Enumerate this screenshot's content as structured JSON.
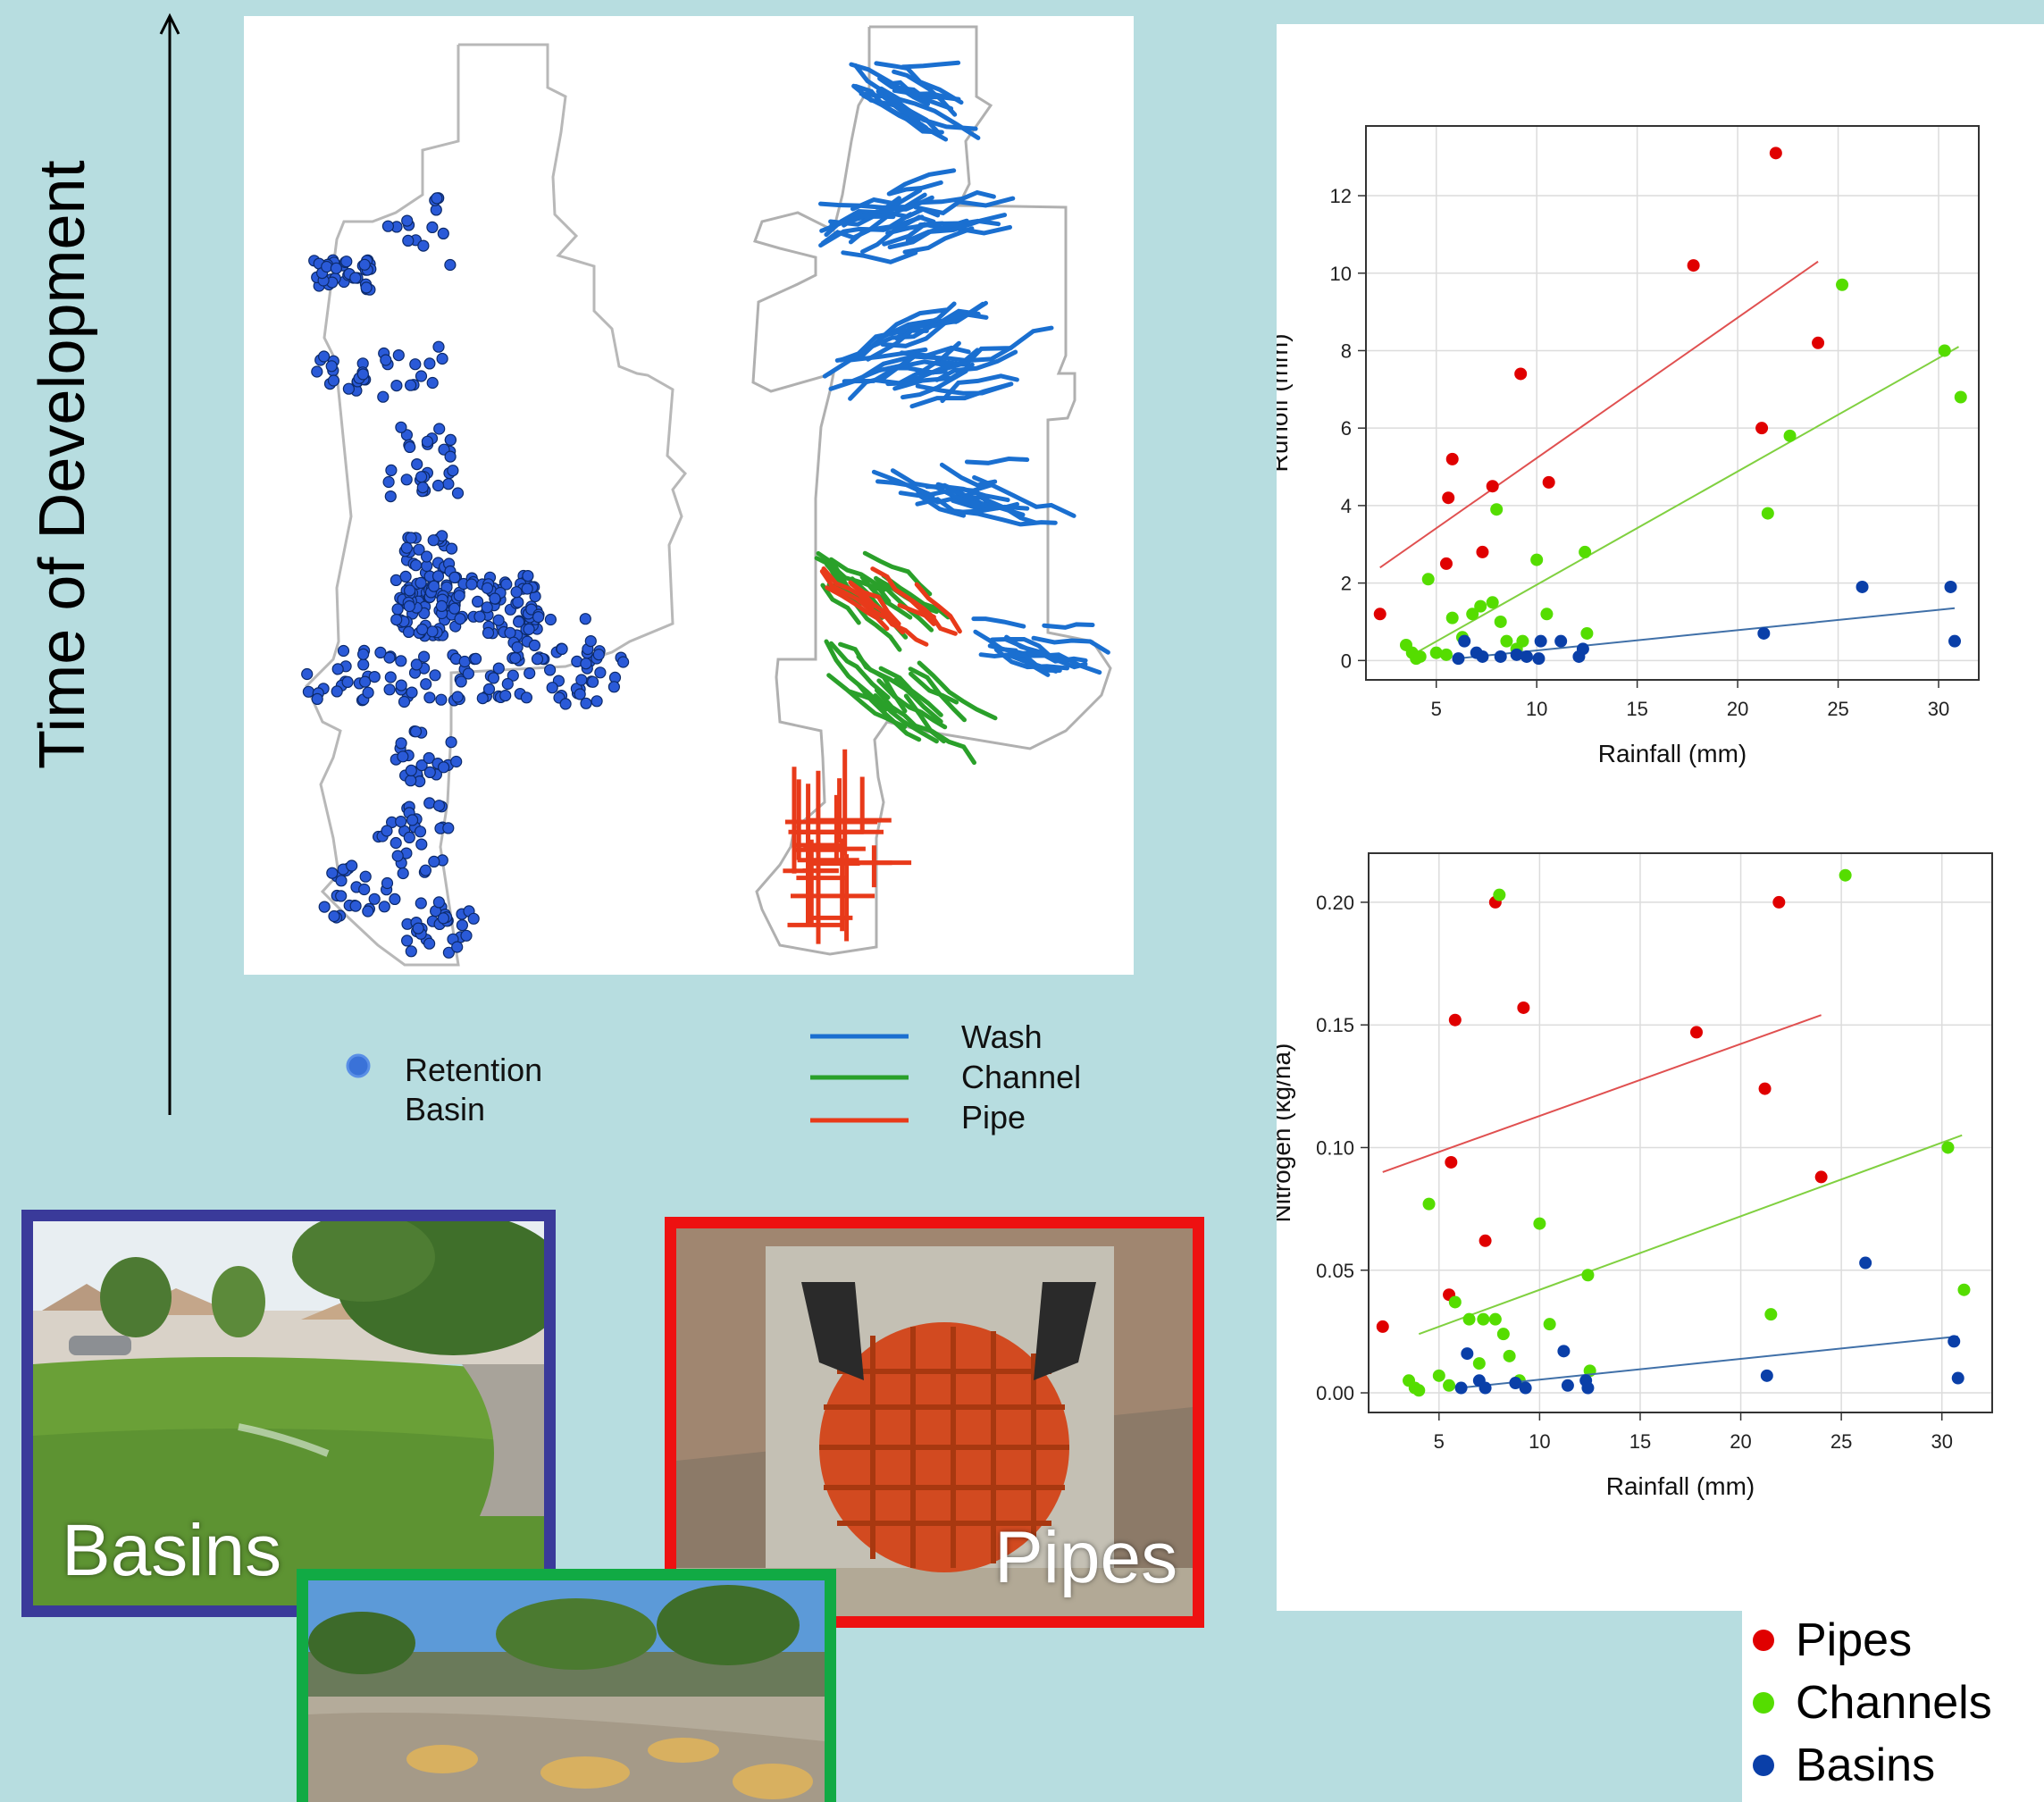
{
  "side_label": "Time of Development",
  "map_legend": {
    "retention_line1": "Retention",
    "retention_line2": "Basin",
    "wash": "Wash",
    "channel": "Channel",
    "pipe": "Pipe"
  },
  "colors": {
    "background": "#b7dde0",
    "basin_dot": "#2a5ad8",
    "wash": "#1a6fd0",
    "channel": "#2aa02a",
    "pipe": "#e83a1a",
    "pipes_series": "#e00000",
    "channels_series": "#55dd00",
    "basins_series": "#0a3fa8",
    "basins_frame": "#3a3a9a",
    "pipes_frame": "#ee1111",
    "channels_frame": "#11aa44"
  },
  "photos": {
    "basins": "Basins",
    "pipes": "Pipes"
  },
  "bottom_legend": {
    "pipes": "Pipes",
    "channels": "Channels",
    "basins": "Basins"
  },
  "chart_data": [
    {
      "type": "scatter",
      "xlabel": "Rainfall (mm)",
      "ylabel": "Runoff (mm)",
      "xlim": [
        1.5,
        32
      ],
      "ylim": [
        -0.5,
        13.8
      ],
      "xticks": [
        5,
        10,
        15,
        20,
        25,
        30
      ],
      "yticks": [
        0,
        2,
        4,
        6,
        8,
        10,
        12
      ],
      "ytick_labels": [
        "0",
        "2",
        "4",
        "6",
        "8",
        "10",
        "12"
      ],
      "grid": true,
      "series": [
        {
          "key": "pipes",
          "points": [
            [
              2.2,
              1.2
            ],
            [
              5.5,
              2.5
            ],
            [
              5.6,
              4.2
            ],
            [
              5.8,
              5.2
            ],
            [
              7.3,
              2.8
            ],
            [
              7.8,
              4.5
            ],
            [
              9.2,
              7.4
            ],
            [
              10.6,
              4.6
            ],
            [
              17.8,
              10.2
            ],
            [
              21.2,
              6.0
            ],
            [
              21.9,
              13.1
            ],
            [
              24.0,
              8.2
            ]
          ],
          "fit": [
            [
              2.2,
              2.4
            ],
            [
              24.0,
              10.3
            ]
          ]
        },
        {
          "key": "channels",
          "points": [
            [
              3.5,
              0.4
            ],
            [
              3.8,
              0.2
            ],
            [
              4.0,
              0.05
            ],
            [
              4.2,
              0.1
            ],
            [
              4.6,
              2.1
            ],
            [
              5.0,
              0.2
            ],
            [
              5.5,
              0.15
            ],
            [
              5.8,
              1.1
            ],
            [
              6.3,
              0.6
            ],
            [
              6.8,
              1.2
            ],
            [
              7.2,
              1.4
            ],
            [
              7.8,
              1.5
            ],
            [
              8.0,
              3.9
            ],
            [
              8.2,
              1.0
            ],
            [
              8.5,
              0.5
            ],
            [
              9.0,
              0.3
            ],
            [
              9.3,
              0.5
            ],
            [
              10.0,
              2.6
            ],
            [
              10.5,
              1.2
            ],
            [
              12.4,
              2.8
            ],
            [
              12.5,
              0.7
            ],
            [
              21.5,
              3.8
            ],
            [
              22.6,
              5.8
            ],
            [
              25.2,
              9.7
            ],
            [
              30.3,
              8.0
            ],
            [
              31.1,
              6.8
            ]
          ],
          "fit": [
            [
              4.0,
              0.2
            ],
            [
              31.0,
              8.1
            ]
          ]
        },
        {
          "key": "basins",
          "points": [
            [
              6.1,
              0.05
            ],
            [
              6.4,
              0.5
            ],
            [
              7.0,
              0.2
            ],
            [
              7.3,
              0.1
            ],
            [
              8.2,
              0.1
            ],
            [
              9.0,
              0.15
            ],
            [
              9.5,
              0.1
            ],
            [
              10.1,
              0.05
            ],
            [
              10.2,
              0.5
            ],
            [
              11.2,
              0.5
            ],
            [
              12.1,
              0.1
            ],
            [
              12.3,
              0.3
            ],
            [
              21.3,
              0.7
            ],
            [
              26.2,
              1.9
            ],
            [
              30.6,
              1.9
            ],
            [
              30.8,
              0.5
            ]
          ],
          "fit": [
            [
              6.0,
              0.05
            ],
            [
              30.8,
              1.35
            ]
          ]
        }
      ]
    },
    {
      "type": "scatter",
      "xlabel": "Rainfall (mm)",
      "ylabel": "Nitrogen (kg/ha)",
      "xlim": [
        1.5,
        32.5
      ],
      "ylim": [
        -0.008,
        0.22
      ],
      "xticks": [
        5,
        10,
        15,
        20,
        25,
        30
      ],
      "yticks": [
        0.0,
        0.05,
        0.1,
        0.15,
        0.2
      ],
      "ytick_labels": [
        "0.00",
        "0.05",
        "0.10",
        "0.15",
        "0.20"
      ],
      "grid": true,
      "series": [
        {
          "key": "pipes",
          "points": [
            [
              2.2,
              0.027
            ],
            [
              5.5,
              0.04
            ],
            [
              5.6,
              0.094
            ],
            [
              5.8,
              0.152
            ],
            [
              7.3,
              0.062
            ],
            [
              7.8,
              0.2
            ],
            [
              9.2,
              0.157
            ],
            [
              17.8,
              0.147
            ],
            [
              21.2,
              0.124
            ],
            [
              21.9,
              0.2
            ],
            [
              24.0,
              0.088
            ]
          ],
          "fit": [
            [
              2.2,
              0.09
            ],
            [
              24.0,
              0.154
            ]
          ]
        },
        {
          "key": "channels",
          "points": [
            [
              3.5,
              0.005
            ],
            [
              3.8,
              0.002
            ],
            [
              4.0,
              0.001
            ],
            [
              4.5,
              0.077
            ],
            [
              5.0,
              0.007
            ],
            [
              5.5,
              0.003
            ],
            [
              5.8,
              0.037
            ],
            [
              6.5,
              0.03
            ],
            [
              7.0,
              0.012
            ],
            [
              7.2,
              0.03
            ],
            [
              7.8,
              0.03
            ],
            [
              8.0,
              0.203
            ],
            [
              8.2,
              0.024
            ],
            [
              8.5,
              0.015
            ],
            [
              9.0,
              0.005
            ],
            [
              10.0,
              0.069
            ],
            [
              10.5,
              0.028
            ],
            [
              12.4,
              0.048
            ],
            [
              12.5,
              0.009
            ],
            [
              21.5,
              0.032
            ],
            [
              25.2,
              0.211
            ],
            [
              30.3,
              0.1
            ],
            [
              31.1,
              0.042
            ]
          ],
          "fit": [
            [
              4.0,
              0.024
            ],
            [
              31.0,
              0.105
            ]
          ]
        },
        {
          "key": "basins",
          "points": [
            [
              6.1,
              0.002
            ],
            [
              6.4,
              0.016
            ],
            [
              7.0,
              0.005
            ],
            [
              7.3,
              0.002
            ],
            [
              8.8,
              0.004
            ],
            [
              9.3,
              0.002
            ],
            [
              11.2,
              0.017
            ],
            [
              11.4,
              0.003
            ],
            [
              12.3,
              0.005
            ],
            [
              12.4,
              0.002
            ],
            [
              21.3,
              0.007
            ],
            [
              26.2,
              0.053
            ],
            [
              30.6,
              0.021
            ],
            [
              30.8,
              0.006
            ]
          ],
          "fit": [
            [
              6.0,
              0.002
            ],
            [
              30.8,
              0.023
            ]
          ]
        }
      ]
    }
  ]
}
